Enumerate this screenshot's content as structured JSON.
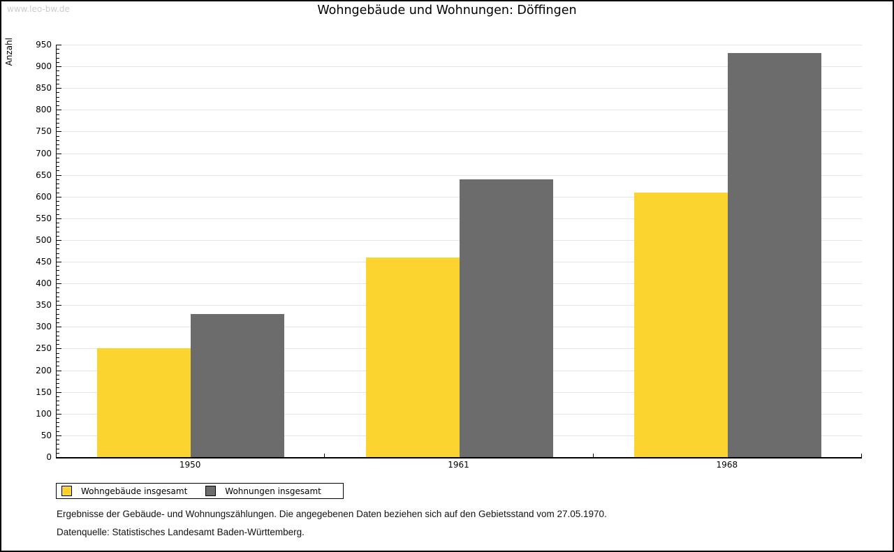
{
  "watermark": "www.leo-bw.de",
  "title": "Wohngebäude und Wohnungen: Döffingen",
  "chart_data": {
    "type": "bar",
    "title": "Wohngebäude und Wohnungen: Döffingen",
    "categories": [
      "1950",
      "1961",
      "1968"
    ],
    "series": [
      {
        "name": "Wohngebäude insgesamt",
        "color": "#FCD42F",
        "values": [
          250,
          460,
          610
        ]
      },
      {
        "name": "Wohnungen insgesamt",
        "color": "#6C6C6C",
        "values": [
          330,
          640,
          930
        ]
      }
    ],
    "xlabel": "",
    "ylabel": "Anzahl",
    "ylim": [
      0,
      950
    ],
    "ytick_step": 50,
    "y_minor_tick_step": 10,
    "grid": true,
    "legend_position": "bottom-left",
    "gridline_color": "#e4e4e4",
    "axis_color": "#000000"
  },
  "footer": {
    "line1": "Ergebnisse der Gebäude- und Wohnungszählungen. Die angegebenen Daten beziehen sich auf den Gebietsstand vom 27.05.1970.",
    "line2": "Datenquelle: Statistisches Landesamt Baden-Württemberg."
  }
}
